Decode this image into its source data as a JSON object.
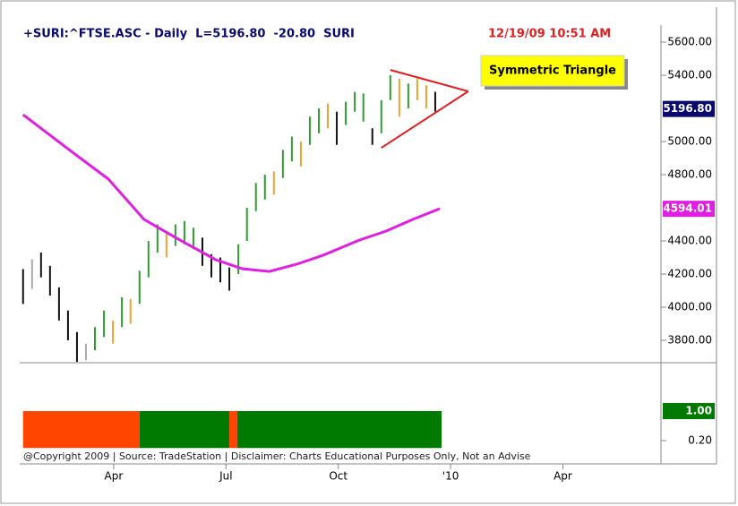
{
  "chart_data": [
    {
      "type": "ohlc",
      "title": "+SURI:^FTSE.ASC - Daily  L=5196.80  -20.80  SURI",
      "timestamp": "12/19/09 10:51 AM",
      "annotation": "Symmetric Triangle",
      "x": [
        0.58,
        0.82,
        1.06,
        1.3,
        1.54,
        1.78,
        2.02,
        2.26,
        2.5,
        2.74,
        2.98,
        3.22,
        3.45,
        3.69,
        3.93,
        4.17,
        4.41,
        4.65,
        4.89,
        5.13,
        5.37,
        5.61,
        5.85,
        6.09,
        6.33,
        6.56,
        6.8,
        7.04,
        7.28,
        7.52,
        7.76,
        8.0,
        8.24,
        8.48,
        8.72,
        8.96,
        9.2,
        9.44,
        9.67,
        9.91,
        10.15,
        10.39,
        10.63,
        10.87,
        11.11,
        11.35,
        11.59
      ],
      "high": [
        4230,
        4290,
        4330,
        4250,
        4120,
        3980,
        3850,
        3780,
        3880,
        3980,
        3920,
        4060,
        4050,
        4220,
        4400,
        4500,
        4450,
        4500,
        4520,
        4480,
        4420,
        4320,
        4300,
        4240,
        4380,
        4600,
        4750,
        4800,
        4820,
        4950,
        5030,
        5000,
        5150,
        5200,
        5230,
        5180,
        5240,
        5300,
        5290,
        5080,
        5250,
        5400,
        5380,
        5350,
        5380,
        5340,
        5300
      ],
      "low": [
        4020,
        4110,
        4180,
        4070,
        3920,
        3800,
        3670,
        3680,
        3740,
        3820,
        3780,
        3880,
        3900,
        4020,
        4180,
        4330,
        4300,
        4370,
        4380,
        4350,
        4250,
        4180,
        4150,
        4100,
        4200,
        4400,
        4580,
        4650,
        4680,
        4780,
        4880,
        4850,
        4980,
        5050,
        5080,
        4980,
        5100,
        5180,
        5120,
        4980,
        5050,
        5250,
        5150,
        5200,
        5250,
        5200,
        5180
      ],
      "bar_colors": [
        "#111111",
        "#aaaaaa",
        "#111111",
        "#111111",
        "#111111",
        "#111111",
        "#111111",
        "#aaaaaa",
        "#2e9e2e",
        "#2e9e2e",
        "#f0a030",
        "#2e9e2e",
        "#f0a030",
        "#2e9e2e",
        "#2e9e2e",
        "#2e9e2e",
        "#f0a030",
        "#2e9e2e",
        "#2e9e2e",
        "#2e9e2e",
        "#111111",
        "#111111",
        "#111111",
        "#111111",
        "#2e9e2e",
        "#2e9e2e",
        "#2e9e2e",
        "#2e9e2e",
        "#f0a030",
        "#2e9e2e",
        "#2e9e2e",
        "#f0a030",
        "#2e9e2e",
        "#2e9e2e",
        "#f0a030",
        "#111111",
        "#2e9e2e",
        "#2e9e2e",
        "#2e9e2e",
        "#111111",
        "#2e9e2e",
        "#2e9e2e",
        "#f0a030",
        "#2e9e2e",
        "#f0a030",
        "#f0a030",
        "#111111"
      ],
      "overlay": {
        "color": "#e020e0",
        "x": [
          0.58,
          1.9,
          2.86,
          3.81,
          4.77,
          5.73,
          6.44,
          7.16,
          7.88,
          8.6,
          9.56,
          10.27,
          10.99,
          11.71
        ],
        "values": [
          5162,
          4935,
          4773,
          4530,
          4405,
          4286,
          4232,
          4216,
          4259,
          4314,
          4405,
          4459,
          4530,
          4595
        ]
      },
      "trendline_color": "#e02020",
      "trendlines": [
        {
          "x": [
            10.39,
            12.47
          ],
          "values": [
            5432,
            5303
          ]
        },
        {
          "x": [
            10.15,
            12.47
          ],
          "values": [
            4962,
            5303
          ]
        }
      ],
      "last_labels": [
        {
          "value": 5196.8,
          "label": "5196.80",
          "color": "#0a0a6e"
        },
        {
          "value": 4594.01,
          "label": "4594.01",
          "color": "#e020e0"
        }
      ],
      "xlim": [
        0.49,
        17.62
      ],
      "xticks": [
        {
          "value": 3,
          "label": "Apr"
        },
        {
          "value": 6,
          "label": "Jul"
        },
        {
          "value": 9,
          "label": "Oct"
        },
        {
          "value": 12,
          "label": "'10"
        },
        {
          "value": 15,
          "label": "Apr"
        }
      ],
      "ylim": [
        3665,
        5703
      ],
      "yticks": [
        {
          "value": 3800,
          "label": "3800.00"
        },
        {
          "value": 4000,
          "label": "4000.00"
        },
        {
          "value": 4200,
          "label": "4200.00"
        },
        {
          "value": 4400,
          "label": "4400.00"
        },
        {
          "value": 4800,
          "label": "4800.00"
        },
        {
          "value": 5000,
          "label": "5000.00"
        },
        {
          "value": 5400,
          "label": "5400.00"
        },
        {
          "value": 5600,
          "label": "5600.00"
        }
      ]
    },
    {
      "type": "indicator",
      "segments": [
        {
          "start": 0.58,
          "end": 3.69,
          "value": 1,
          "color": "#ff4500"
        },
        {
          "start": 3.69,
          "end": 6.09,
          "value": 1,
          "color": "#007a00"
        },
        {
          "start": 6.09,
          "end": 6.3,
          "value": 1,
          "color": "#ff4500"
        },
        {
          "start": 6.3,
          "end": 11.76,
          "value": 1,
          "color": "#007a00"
        }
      ],
      "last_labels": [
        {
          "value": 1,
          "label": "1.00",
          "color": "#007a00"
        }
      ],
      "ylim": [
        -0.43,
        2.31
      ],
      "yticks": [
        {
          "value": 0.2,
          "label": "0.20"
        }
      ]
    }
  ],
  "footer": "@Copyright 2009 | Source: TradeStation | Disclaimer: Charts Educational Purposes Only, Not an Advise"
}
